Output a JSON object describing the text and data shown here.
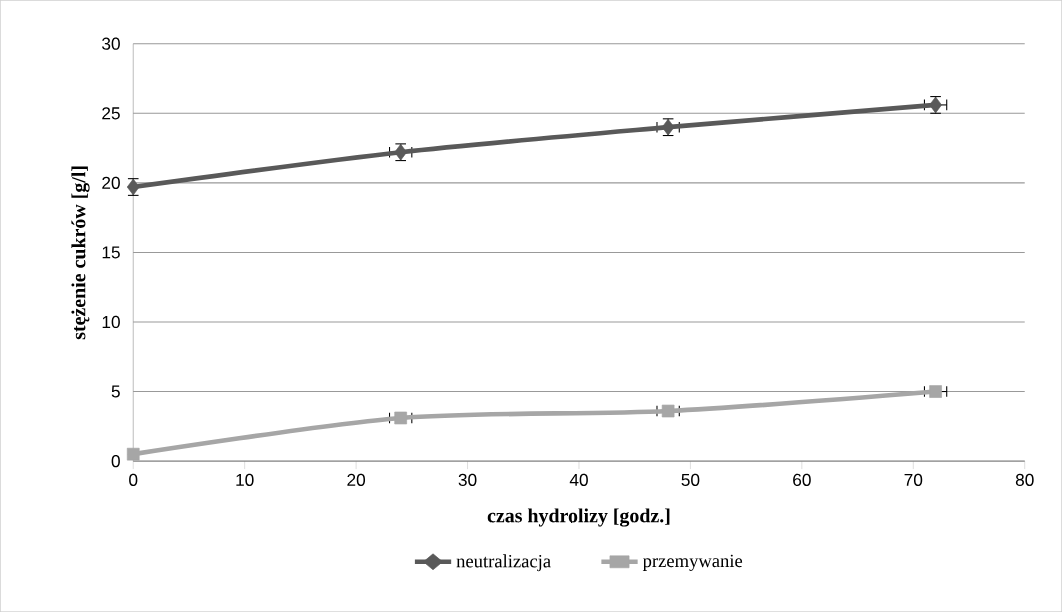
{
  "chart_data": {
    "type": "line",
    "xlabel": "czas hydrolizy [godz.]",
    "ylabel": "stężenie cukrów [g/l]",
    "x": [
      0,
      24,
      48,
      72
    ],
    "series": [
      {
        "name": "neutralizacja",
        "color": "#595959",
        "marker": "diamond",
        "values": [
          19.7,
          22.2,
          24.0,
          25.6
        ],
        "errors": [
          0.6,
          0.6,
          0.6,
          0.6
        ],
        "xerrors": [
          null,
          1,
          1,
          1
        ]
      },
      {
        "name": "przemywanie",
        "color": "#a6a6a6",
        "marker": "square",
        "values": [
          0.5,
          3.1,
          3.6,
          5.0
        ],
        "xerrors": [
          null,
          1,
          1,
          1
        ]
      }
    ],
    "xlim": [
      0,
      80
    ],
    "xticks": [
      0,
      10,
      20,
      30,
      40,
      50,
      60,
      70,
      80
    ],
    "ylim": [
      0,
      30
    ],
    "yticks": [
      0,
      5,
      10,
      15,
      20,
      25,
      30
    ],
    "grid": "y",
    "legend": "bottom",
    "line_style": "solid"
  }
}
